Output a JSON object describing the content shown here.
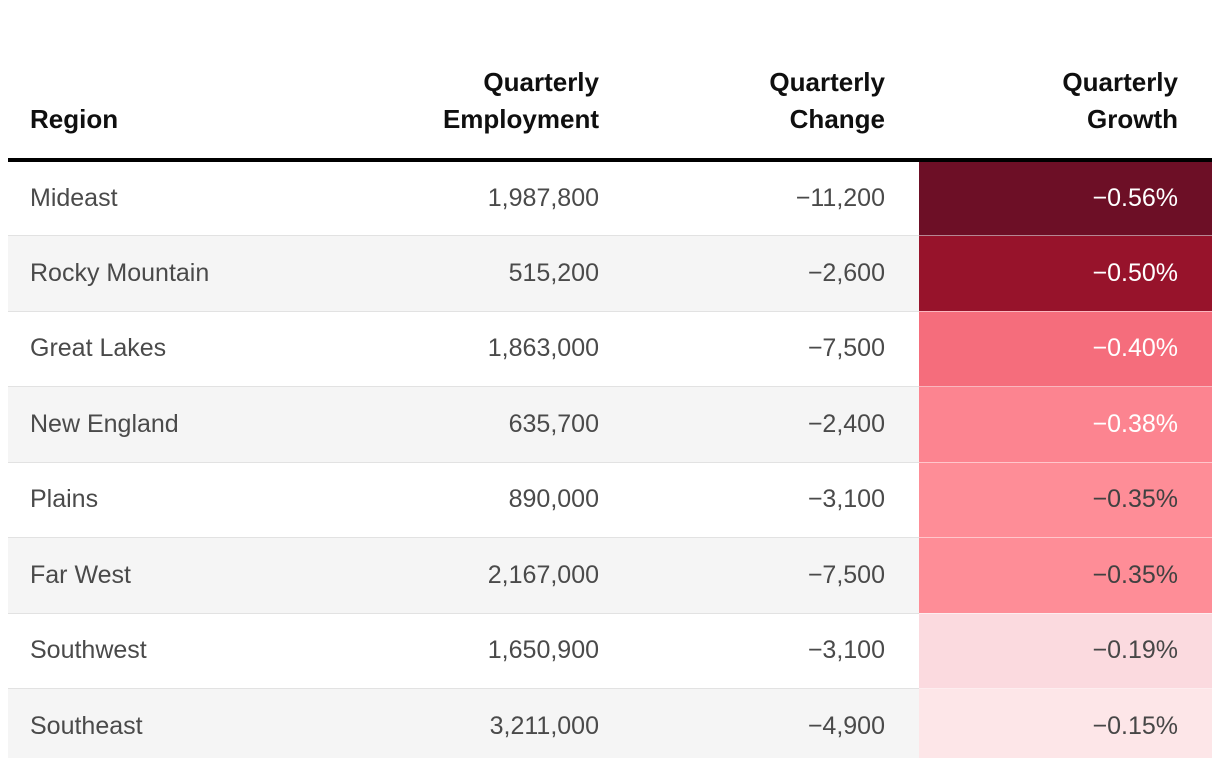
{
  "table": {
    "headers": [
      {
        "lines": [
          "Region"
        ]
      },
      {
        "lines": [
          "Quarterly",
          "Employment"
        ]
      },
      {
        "lines": [
          "Quarterly",
          "Change"
        ]
      },
      {
        "lines": [
          "Quarterly",
          "Growth"
        ]
      }
    ],
    "rows": [
      {
        "region": "Mideast",
        "employment": "1,987,800",
        "change": "−11,200",
        "growth": "−0.56%",
        "growth_bg": "#6D0F26",
        "growth_color": "#FFFFFF"
      },
      {
        "region": "Rocky Mountain",
        "employment": "515,200",
        "change": "−2,600",
        "growth": "−0.50%",
        "growth_bg": "#97132B",
        "growth_color": "#FFFFFF"
      },
      {
        "region": "Great Lakes",
        "employment": "1,863,000",
        "change": "−7,500",
        "growth": "−0.40%",
        "growth_bg": "#F56D7C",
        "growth_color": "#FFFFFF"
      },
      {
        "region": "New England",
        "employment": "635,700",
        "change": "−2,400",
        "growth": "−0.38%",
        "growth_bg": "#FC8490",
        "growth_color": "#FFFFFF"
      },
      {
        "region": "Plains",
        "employment": "890,000",
        "change": "−3,100",
        "growth": "−0.35%",
        "growth_bg": "#FE8D97",
        "growth_color": "#414141"
      },
      {
        "region": "Far West",
        "employment": "2,167,000",
        "change": "−7,500",
        "growth": "−0.35%",
        "growth_bg": "#FE8D97",
        "growth_color": "#414141"
      },
      {
        "region": "Southwest",
        "employment": "1,650,900",
        "change": "−3,100",
        "growth": "−0.19%",
        "growth_bg": "#FBDADF",
        "growth_color": "#474747"
      },
      {
        "region": "Southeast",
        "employment": "3,211,000",
        "change": "−4,900",
        "growth": "−0.15%",
        "growth_bg": "#FDE6E8",
        "growth_color": "#474747"
      }
    ]
  },
  "colors": {
    "header_rule": "#000000",
    "header_text": "#0f0f0f",
    "body_text": "#4a4a4a",
    "row_stripe": "#f5f5f5",
    "background": "#ffffff"
  },
  "chart_data": {
    "type": "table",
    "title": "",
    "columns": [
      "Region",
      "Quarterly Employment",
      "Quarterly Change",
      "Quarterly Growth"
    ],
    "rows": [
      [
        "Mideast",
        1987800,
        -11200,
        -0.56
      ],
      [
        "Rocky Mountain",
        515200,
        -2600,
        -0.5
      ],
      [
        "Great Lakes",
        1863000,
        -7500,
        -0.4
      ],
      [
        "New England",
        635700,
        -2400,
        -0.38
      ],
      [
        "Plains",
        890000,
        -3100,
        -0.35
      ],
      [
        "Far West",
        2167000,
        -7500,
        -0.35
      ],
      [
        "Southwest",
        1650900,
        -3100,
        -0.19
      ],
      [
        "Southeast",
        3211000,
        -4900,
        -0.15
      ]
    ],
    "growth_units": "percent",
    "heatmap_column": "Quarterly Growth",
    "heatmap_scale": "dark red (most negative) to pale pink (least negative)",
    "heatmap_colors": [
      "#6D0F26",
      "#97132B",
      "#F56D7C",
      "#FC8490",
      "#FE8D97",
      "#FE8D97",
      "#FBDADF",
      "#FDE6E8"
    ]
  }
}
